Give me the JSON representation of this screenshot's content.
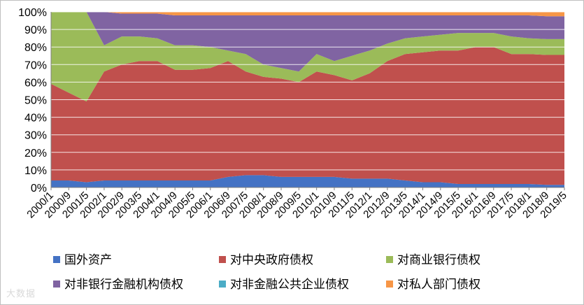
{
  "watermark": {
    "text": "大数据"
  },
  "chart_data": {
    "type": "area",
    "stacked": true,
    "normalized": true,
    "title": "",
    "xlabel": "",
    "ylabel": "",
    "ylim": [
      0,
      100
    ],
    "y_ticks": [
      "0%",
      "10%",
      "20%",
      "30%",
      "40%",
      "50%",
      "60%",
      "70%",
      "80%",
      "90%",
      "100%"
    ],
    "x_ticks": [
      "2000/1",
      "2000/9",
      "2001/5",
      "2002/1",
      "2002/9",
      "2003/5",
      "2004/1",
      "2004/9",
      "2005/5",
      "2006/1",
      "2006/9",
      "2007/5",
      "2008/1",
      "2008/9",
      "2009/5",
      "2010/1",
      "2010/9",
      "2011/5",
      "2012/1",
      "2012/9",
      "2013/5",
      "2014/1",
      "2014/9",
      "2015/5",
      "2016/1",
      "2016/9",
      "2017/5",
      "2018/1",
      "2018/9",
      "2019/5"
    ],
    "x": [
      "2000/1",
      "2000/9",
      "2001/5",
      "2002/1",
      "2002/9",
      "2003/5",
      "2004/1",
      "2004/9",
      "2005/5",
      "2006/1",
      "2006/9",
      "2007/5",
      "2008/1",
      "2008/9",
      "2009/5",
      "2010/1",
      "2010/9",
      "2011/5",
      "2012/1",
      "2012/9",
      "2013/5",
      "2014/1",
      "2014/9",
      "2015/5",
      "2016/1",
      "2016/9",
      "2017/5",
      "2018/1",
      "2018/9",
      "2019/5"
    ],
    "series": [
      {
        "name": "国外资产",
        "color": "#4472c4",
        "values": [
          4,
          4,
          3,
          4,
          4,
          4,
          4,
          4,
          4,
          4,
          6,
          7,
          7,
          6,
          6,
          6,
          6,
          5,
          5,
          5,
          4,
          3,
          3,
          2,
          2,
          2,
          2,
          2,
          1.5,
          1.5
        ]
      },
      {
        "name": "对中央政府债权",
        "color": "#c0504d",
        "values": [
          55,
          50,
          46,
          62,
          66,
          68,
          68,
          63,
          63,
          64,
          66,
          59,
          56,
          56,
          54,
          60,
          58,
          56,
          60,
          67,
          72,
          74,
          75,
          76,
          78,
          78,
          74,
          74,
          74,
          74
        ]
      },
      {
        "name": "对商业银行债权",
        "color": "#9bbb59",
        "values": [
          41,
          46,
          51,
          15,
          16,
          14,
          13,
          14,
          14,
          12,
          6,
          10,
          7,
          6,
          6,
          10,
          8,
          14,
          13,
          10,
          9,
          9,
          9,
          10,
          8,
          8,
          10,
          9,
          9,
          9
        ]
      },
      {
        "name": "对非银行金融机构债权",
        "color": "#8064a2",
        "values": [
          0,
          0,
          0,
          19,
          13,
          13,
          14,
          17,
          17,
          18,
          20,
          22,
          28,
          30,
          32,
          22,
          26,
          23,
          20,
          16,
          13,
          12,
          11,
          10,
          10,
          10,
          12,
          13,
          13,
          13
        ]
      },
      {
        "name": "对非金融公共企业债权",
        "color": "#4bacc6",
        "values": [
          0,
          0,
          0,
          0,
          0,
          0,
          0,
          0,
          0,
          0,
          0,
          0,
          0,
          0,
          0,
          0,
          0,
          0,
          0,
          0,
          0,
          0,
          0,
          0,
          0,
          0,
          0,
          0,
          0,
          0
        ]
      },
      {
        "name": "对私人部门债权",
        "color": "#f79646",
        "values": [
          0,
          0,
          0,
          0,
          1,
          1,
          1,
          2,
          2,
          2,
          2,
          2,
          2,
          2,
          2,
          2,
          2,
          2,
          2,
          2,
          2,
          2,
          2,
          2,
          2,
          2,
          2,
          2,
          2.5,
          2.5
        ]
      }
    ],
    "legend": {
      "placement": "bottom",
      "columns": 3
    }
  }
}
